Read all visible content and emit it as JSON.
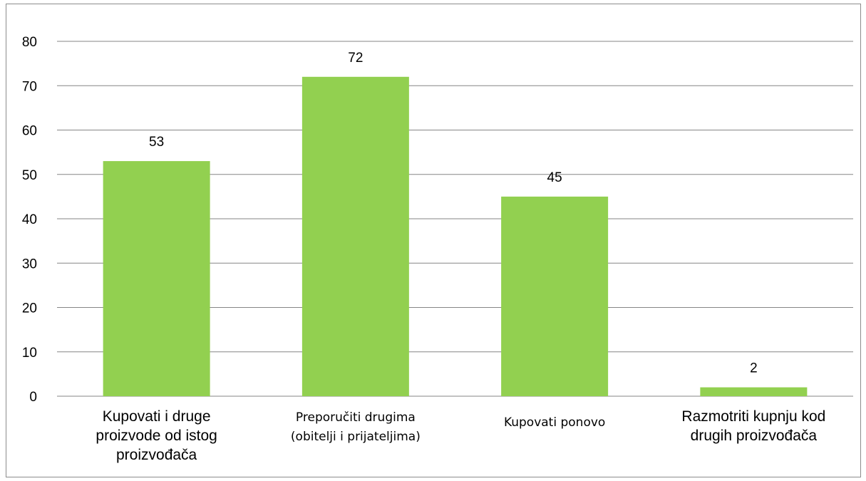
{
  "chart_data": {
    "type": "bar",
    "categories": [
      [
        "Kupovati i druge",
        "proizvode od istog",
        "proizvođača"
      ],
      [
        "Preporučiti drugima",
        "(obitelji i prijateljima)"
      ],
      [
        "Kupovati ponovo"
      ],
      [
        "Razmotriti kupnju kod",
        "drugih proizvođača"
      ]
    ],
    "values": [
      53,
      72,
      45,
      2
    ],
    "data_labels": [
      "53",
      "72",
      "45",
      "2"
    ],
    "yticks": [
      "0",
      "10",
      "20",
      "30",
      "40",
      "50",
      "60",
      "70",
      "80"
    ],
    "ylim": [
      0,
      80
    ],
    "grid": true,
    "bar_color": "#92d050",
    "grid_color": "#868686"
  }
}
